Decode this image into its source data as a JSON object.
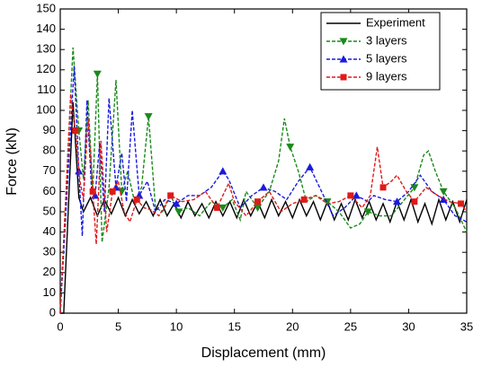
{
  "chart_data": {
    "type": "line",
    "xlabel": "Displacement (mm)",
    "ylabel": "Force (kN)",
    "xlim": [
      0,
      35
    ],
    "xticks": [
      0,
      5,
      10,
      15,
      20,
      25,
      30,
      35
    ],
    "ylim": [
      0,
      150
    ],
    "yticks": [
      0,
      10,
      20,
      30,
      40,
      50,
      60,
      70,
      80,
      90,
      100,
      110,
      120,
      130,
      140,
      150
    ],
    "legend": "upper right",
    "series": [
      {
        "name": "Experiment",
        "color": "#000000",
        "dash": "solid",
        "marker": "none",
        "x": [
          0,
          0.3,
          1.1,
          1.6,
          2.0,
          2.6,
          3.2,
          3.8,
          4.4,
          5.0,
          5.6,
          6.2,
          6.8,
          7.4,
          8.0,
          8.6,
          9.2,
          9.8,
          10.4,
          11.0,
          11.6,
          12.2,
          12.8,
          13.4,
          14.0,
          14.6,
          15.2,
          15.8,
          16.4,
          17.0,
          17.6,
          18.2,
          18.8,
          19.4,
          20.0,
          20.6,
          21.2,
          21.8,
          22.4,
          23.0,
          23.6,
          24.2,
          24.8,
          25.4,
          26.0,
          26.6,
          27.2,
          27.8,
          28.4,
          29.0,
          29.6,
          30.2,
          30.8,
          31.4,
          32.0,
          32.6,
          33.2,
          33.8,
          34.4,
          35
        ],
        "values": [
          0,
          0,
          104,
          57,
          50,
          57,
          48,
          56,
          49,
          57,
          48,
          56,
          49,
          55,
          48,
          56,
          48,
          54,
          47,
          55,
          48,
          54,
          47,
          55,
          48,
          55,
          47,
          56,
          48,
          55,
          47,
          56,
          48,
          55,
          47,
          56,
          48,
          55,
          46,
          55,
          46,
          54,
          46,
          56,
          47,
          55,
          46,
          54,
          45,
          55,
          46,
          56,
          45,
          54,
          44,
          56,
          46,
          55,
          45,
          56
        ]
      },
      {
        "name": "3 layers",
        "color": "#1a8a1a",
        "dash": "dashed",
        "marker": "triangle-down",
        "x": [
          0,
          1.1,
          1.6,
          2.0,
          2.4,
          2.8,
          3.2,
          3.6,
          4.2,
          4.8,
          5.3,
          5.8,
          6.4,
          7.0,
          7.6,
          8.2,
          8.8,
          9.5,
          10.2,
          11,
          12,
          13,
          14,
          14.8,
          15.5,
          16,
          17,
          18,
          18.8,
          19.3,
          19.8,
          20.5,
          21.2,
          22,
          23,
          24,
          25,
          25.8,
          26.5,
          27.5,
          28.5,
          29.5,
          30.5,
          31.3,
          31.7,
          32.3,
          33,
          34,
          35
        ],
        "values": [
          0,
          131,
          90,
          66,
          105,
          60,
          118,
          35,
          62,
          115,
          60,
          70,
          55,
          62,
          97,
          52,
          50,
          58,
          50,
          52,
          48,
          55,
          52,
          56,
          46,
          60,
          52,
          60,
          75,
          96,
          82,
          70,
          55,
          58,
          55,
          50,
          42,
          44,
          50,
          48,
          48,
          55,
          62,
          78,
          80,
          70,
          60,
          52,
          40
        ]
      },
      {
        "name": "5 layers",
        "color": "#1a1ae0",
        "dash": "dashed",
        "marker": "triangle-up",
        "x": [
          0,
          1.2,
          1.6,
          1.9,
          2.3,
          2.7,
          3.0,
          3.4,
          3.8,
          4.2,
          4.8,
          5.3,
          5.7,
          6.2,
          6.8,
          7.5,
          8.2,
          9,
          10,
          11,
          12,
          13,
          14,
          14.5,
          15.5,
          16.5,
          17.5,
          18.5,
          19.5,
          20.5,
          21.5,
          22.5,
          23.5,
          24.5,
          25.5,
          26.5,
          27,
          28,
          29,
          30,
          31,
          32,
          33,
          34,
          35
        ],
        "values": [
          0,
          122,
          70,
          38,
          105,
          60,
          58,
          84,
          50,
          106,
          62,
          79,
          55,
          100,
          58,
          65,
          50,
          56,
          54,
          58,
          58,
          62,
          70,
          66,
          52,
          58,
          62,
          60,
          56,
          65,
          72,
          60,
          48,
          52,
          58,
          55,
          58,
          56,
          55,
          60,
          68,
          60,
          56,
          48,
          45
        ]
      },
      {
        "name": "9 layers",
        "color": "#e01a1a",
        "dash": "dashed",
        "marker": "square",
        "x": [
          0,
          0.9,
          1.3,
          1.7,
          2.0,
          2.4,
          2.8,
          3.1,
          3.5,
          4.0,
          4.5,
          5.0,
          5.5,
          6.0,
          6.6,
          7.2,
          7.8,
          8.5,
          9.5,
          10.5,
          11.5,
          12.5,
          13.5,
          14.5,
          15,
          16,
          17,
          18,
          19,
          20,
          21,
          22,
          23,
          24,
          25,
          26,
          26.7,
          27.3,
          27.8,
          28.5,
          29,
          29.8,
          30.5,
          31.5,
          32.5,
          33.5,
          34.5,
          35
        ],
        "values": [
          0,
          108,
          90,
          65,
          56,
          96,
          60,
          34,
          85,
          40,
          60,
          65,
          50,
          45,
          56,
          52,
          51,
          48,
          58,
          55,
          56,
          60,
          52,
          64,
          55,
          48,
          55,
          60,
          50,
          54,
          56,
          58,
          54,
          55,
          58,
          52,
          58,
          82,
          62,
          65,
          68,
          60,
          55,
          62,
          58,
          55,
          54,
          50
        ]
      }
    ]
  }
}
